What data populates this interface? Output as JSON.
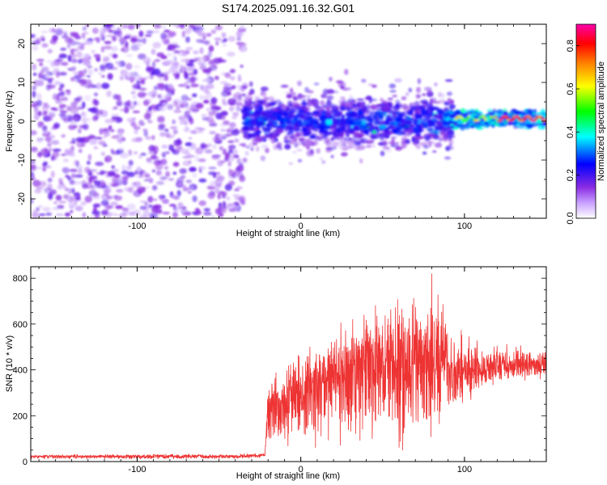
{
  "figure_title": "S174.2025.091.16.32.G01",
  "chart_data": [
    {
      "type": "heatmap",
      "title": "",
      "xlabel": "Height of straight line (km)",
      "ylabel": "Frequency (Hz)",
      "xlim": [
        -165,
        150
      ],
      "ylim": [
        -25,
        25
      ],
      "xticks": [
        -100,
        0,
        100
      ],
      "yticks": [
        -20,
        -10,
        0,
        10,
        20
      ],
      "colorbar": {
        "label": "Normalized spectral amplitude",
        "range": [
          0.0,
          0.9
        ],
        "ticks": [
          0.0,
          0.2,
          0.4,
          0.6,
          0.8
        ],
        "colormap": [
          "#ffffff",
          "#8a2be2",
          "#0000ff",
          "#00ffff",
          "#00ff00",
          "#ffff00",
          "#ff8000",
          "#ff0000",
          "#ff00aa"
        ]
      },
      "regions": [
        {
          "x_range": [
            -165,
            -35
          ],
          "freq_range": [
            -25,
            25
          ],
          "amplitude": "low, uniform noise"
        },
        {
          "x_range": [
            -35,
            90
          ],
          "freq_range": [
            -12,
            12
          ],
          "amplitude": "low to moderate, concentrated near 0 Hz"
        },
        {
          "x_range": [
            90,
            150
          ],
          "freq_range": [
            -2,
            3
          ],
          "amplitude": "high, narrow band near 1 Hz"
        }
      ],
      "band_center_hz": [
        {
          "x": -30,
          "y": 1
        },
        {
          "x": 0,
          "y": 0
        },
        {
          "x": 50,
          "y": 0.5
        },
        {
          "x": 95,
          "y": 0
        },
        {
          "x": 120,
          "y": 0.5
        },
        {
          "x": 148,
          "y": 1
        }
      ]
    },
    {
      "type": "line",
      "title": "",
      "xlabel": "Height of straight line (km)",
      "ylabel": "SNR (10 * v/v)",
      "xlim": [
        -165,
        150
      ],
      "ylim": [
        0,
        850
      ],
      "xticks": [
        -100,
        0,
        100
      ],
      "yticks": [
        0,
        200,
        400,
        600,
        800
      ],
      "series": [
        {
          "color": "#ee3333",
          "envelope": {
            "x": [
              -165,
              -40,
              -22,
              -20,
              0,
              20,
              40,
              60,
              75,
              80,
              90,
              100,
              115,
              150
            ],
            "mean": [
              20,
              20,
              25,
              180,
              260,
              330,
              360,
              350,
              380,
              370,
              340,
              350,
              390,
              420
            ],
            "max": [
              30,
              35,
              40,
              380,
              480,
              600,
              700,
              720,
              780,
              850,
              650,
              560,
              520,
              500
            ],
            "min": [
              10,
              10,
              15,
              40,
              50,
              60,
              50,
              40,
              30,
              60,
              150,
              250,
              320,
              360
            ]
          },
          "points": 2400
        }
      ]
    }
  ]
}
